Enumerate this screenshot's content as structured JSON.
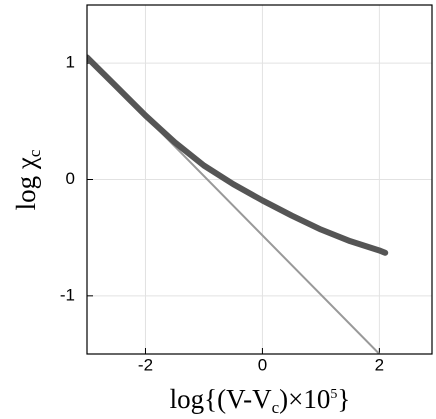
{
  "chart_data": {
    "type": "line",
    "x_label": [
      "log{(V-V",
      "c",
      ")×10",
      "5",
      "}"
    ],
    "y_label": [
      "log χ",
      "c"
    ],
    "xlim": [
      -3,
      2.9
    ],
    "ylim": [
      -1.5,
      1.5
    ],
    "xticks": [
      -2,
      0,
      2
    ],
    "yticks": [
      -1,
      0,
      1
    ],
    "grid": true,
    "series": [
      {
        "color": "#555555",
        "width": 6,
        "x": [
          -3,
          -2.5,
          -2,
          -1.5,
          -1,
          -0.5,
          0,
          0.5,
          1,
          1.5,
          2,
          2.1
        ],
        "values": [
          1.05,
          0.8,
          0.55,
          0.32,
          0.12,
          -0.04,
          -0.18,
          -0.31,
          -0.43,
          -0.53,
          -0.61,
          -0.63
        ]
      },
      {
        "color": "#999999",
        "width": 2,
        "x": [
          -3,
          2
        ],
        "values": [
          1.05,
          -1.5
        ]
      }
    ]
  }
}
